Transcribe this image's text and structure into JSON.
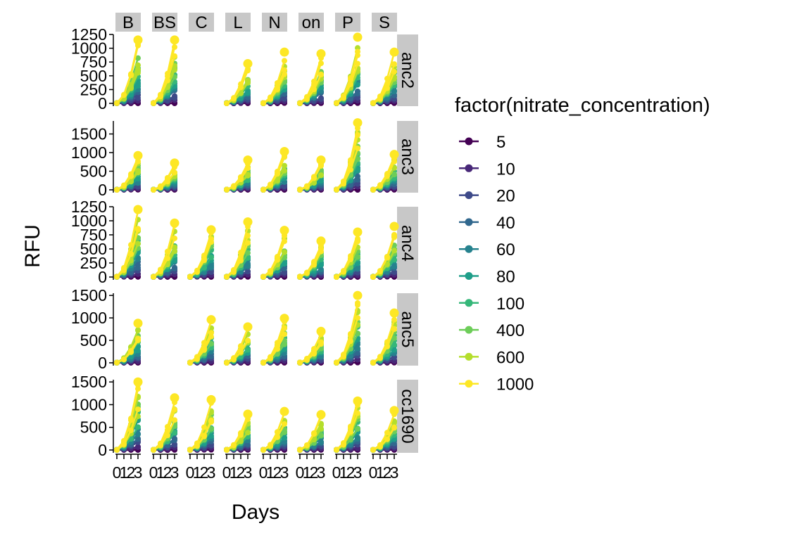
{
  "chart_data": {
    "type": "line",
    "xlabel": "Days",
    "ylabel": "RFU",
    "legend": {
      "title": "factor(nitrate_concentration)",
      "placement": "right",
      "items": [
        "5",
        "10",
        "20",
        "40",
        "60",
        "80",
        "100",
        "400",
        "600",
        "1000"
      ]
    },
    "colors": [
      "#440154",
      "#482878",
      "#3E4A89",
      "#31688E",
      "#26828E",
      "#1F9E89",
      "#35B779",
      "#6DCD59",
      "#B4DE2C",
      "#FDE725"
    ],
    "col_facets": [
      "B",
      "BS",
      "C",
      "L",
      "N",
      "on",
      "P",
      "S"
    ],
    "row_facets": [
      {
        "label": "anc2",
        "ylim": [
          0,
          1250
        ],
        "yticks": [
          "0",
          "250",
          "500",
          "750",
          "1000",
          "1250"
        ],
        "yvals": [
          0,
          250,
          500,
          750,
          1000,
          1250
        ],
        "missing": [
          "C"
        ],
        "max_rfu": {
          "B": 1150,
          "BS": 1150,
          "L": 720,
          "N": 930,
          "on": 900,
          "P": 1200,
          "S": 930
        }
      },
      {
        "label": "anc3",
        "ylim": [
          0,
          1850
        ],
        "yticks": [
          "0",
          "500",
          "1000",
          "1500"
        ],
        "yvals": [
          0,
          500,
          1000,
          1500
        ],
        "missing": [
          "C"
        ],
        "max_rfu": {
          "B": 920,
          "BS": 720,
          "L": 800,
          "N": 1030,
          "on": 800,
          "P": 1800,
          "S": 950
        }
      },
      {
        "label": "anc4",
        "ylim": [
          0,
          1250
        ],
        "yticks": [
          "0",
          "250",
          "500",
          "750",
          "1000",
          "1250"
        ],
        "yvals": [
          0,
          250,
          500,
          750,
          1000,
          1250
        ],
        "missing": [],
        "max_rfu": {
          "B": 1200,
          "BS": 960,
          "C": 840,
          "L": 980,
          "N": 830,
          "on": 640,
          "P": 800,
          "S": 900
        }
      },
      {
        "label": "anc5",
        "ylim": [
          0,
          1550
        ],
        "yticks": [
          "0",
          "500",
          "1000",
          "1500"
        ],
        "yvals": [
          0,
          500,
          1000,
          1500
        ],
        "missing": [
          "BS"
        ],
        "max_rfu": {
          "B": 880,
          "C": 960,
          "L": 800,
          "N": 990,
          "on": 700,
          "P": 1500,
          "S": 1110
        }
      },
      {
        "label": "cc1690",
        "ylim": [
          0,
          1550
        ],
        "yticks": [
          "0",
          "500",
          "1000",
          "1500"
        ],
        "yvals": [
          0,
          500,
          1000,
          1500
        ],
        "missing": [],
        "max_rfu": {
          "B": 1500,
          "BS": 1150,
          "C": 1110,
          "L": 790,
          "N": 850,
          "on": 780,
          "P": 1080,
          "S": 870
        }
      }
    ],
    "xticks": [
      "0",
      "1",
      "2",
      "3"
    ],
    "xvals": [
      0,
      1,
      2,
      3
    ],
    "xlim": [
      0,
      3
    ]
  }
}
